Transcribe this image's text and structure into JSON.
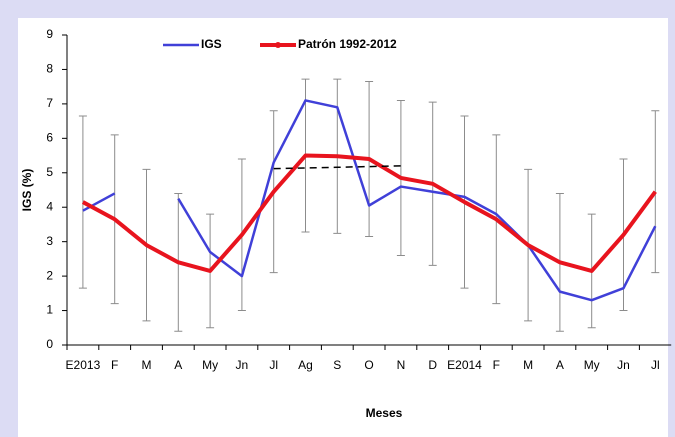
{
  "chart_data": {
    "type": "line",
    "x_label": "Meses",
    "y_label": "IGS (%)",
    "categories": [
      "E2013",
      "F",
      "M",
      "A",
      "My",
      "Jn",
      "Jl",
      "Ag",
      "S",
      "O",
      "N",
      "D",
      "E2014",
      "F",
      "M",
      "A",
      "My",
      "Jn",
      "Jl"
    ],
    "series": [
      {
        "name": "IGS",
        "color": "#4040d8",
        "values": [
          3.9,
          4.4,
          null,
          4.25,
          2.7,
          2.0,
          5.3,
          7.1,
          6.9,
          4.05,
          4.6,
          4.45,
          4.3,
          3.8,
          2.9,
          1.55,
          1.3,
          1.65,
          3.45
        ]
      },
      {
        "name": "Patrón 1992-2012",
        "color": "#e8141e",
        "values": [
          4.15,
          3.65,
          2.9,
          2.4,
          2.15,
          3.2,
          4.45,
          5.5,
          5.48,
          5.4,
          4.85,
          4.68,
          4.15,
          3.65,
          2.9,
          2.4,
          2.15,
          3.2,
          4.45
        ],
        "errors": [
          2.5,
          2.45,
          2.2,
          2.0,
          1.65,
          2.2,
          2.35,
          2.22,
          2.24,
          2.25,
          2.25,
          2.37,
          2.5,
          2.45,
          2.2,
          2.0,
          1.65,
          2.2,
          2.35
        ],
        "error_color": "#8c8c8c"
      }
    ],
    "trend": {
      "color": "#000000",
      "values": [
        null,
        null,
        null,
        null,
        null,
        null,
        5.12,
        5.14,
        5.16,
        5.18,
        5.2,
        null,
        null,
        null,
        null,
        null,
        null,
        null,
        null
      ]
    },
    "ylim": [
      0,
      9
    ],
    "yticks": [
      0,
      1,
      2,
      3,
      4,
      5,
      6,
      7,
      8,
      9
    ]
  }
}
